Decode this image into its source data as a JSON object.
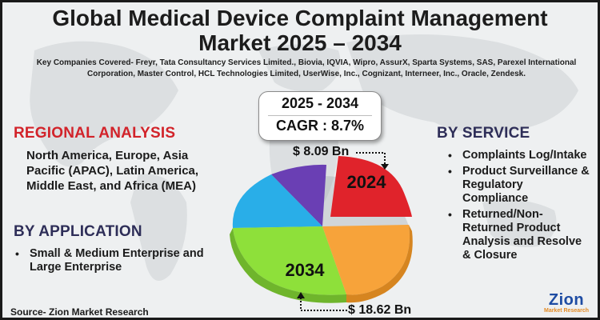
{
  "title_line1": "Global Medical Device Complaint Management",
  "title_line2": "Market 2025 – 2034",
  "companies_text": "Key Companies Covered- Freyr, Tata Consultancy Services Limited., Biovia, IQVIA, Wipro, AssurX, Sparta Systems, SAS, Parexel International Corporation, Master Control, HCL Technologies Limited, UserWise, Inc., Cognizant, Interneer, Inc., Oracle, Zendesk.",
  "cagr": {
    "period": "2025 - 2034",
    "value": "CAGR : 8.7%"
  },
  "regional": {
    "heading": "REGIONAL ANALYSIS",
    "text": "North America, Europe, Asia Pacific (APAC), Latin America, Middle East, and Africa (MEA)"
  },
  "application": {
    "heading": "BY APPLICATION",
    "items": [
      "Small & Medium Enterprise and Large Enterprise"
    ]
  },
  "service": {
    "heading": "BY SERVICE",
    "items": [
      "Complaints Log/Intake",
      "Product Surveillance & Regulatory Compliance",
      "Returned/Non-Returned Product Analysis and Resolve & Closure"
    ]
  },
  "pie": {
    "label_2024": "2024",
    "label_2034": "2034",
    "value_2024": "$ 8.09 Bn",
    "value_2034": "$ 18.62 Bn",
    "colors": [
      "#e0232b",
      "#f7a33a",
      "#8ee03a",
      "#29aee8",
      "#6a3fb4"
    ]
  },
  "source": "Source- Zion Market Research",
  "logo": {
    "main": "Zion",
    "sub": "Market Research"
  }
}
